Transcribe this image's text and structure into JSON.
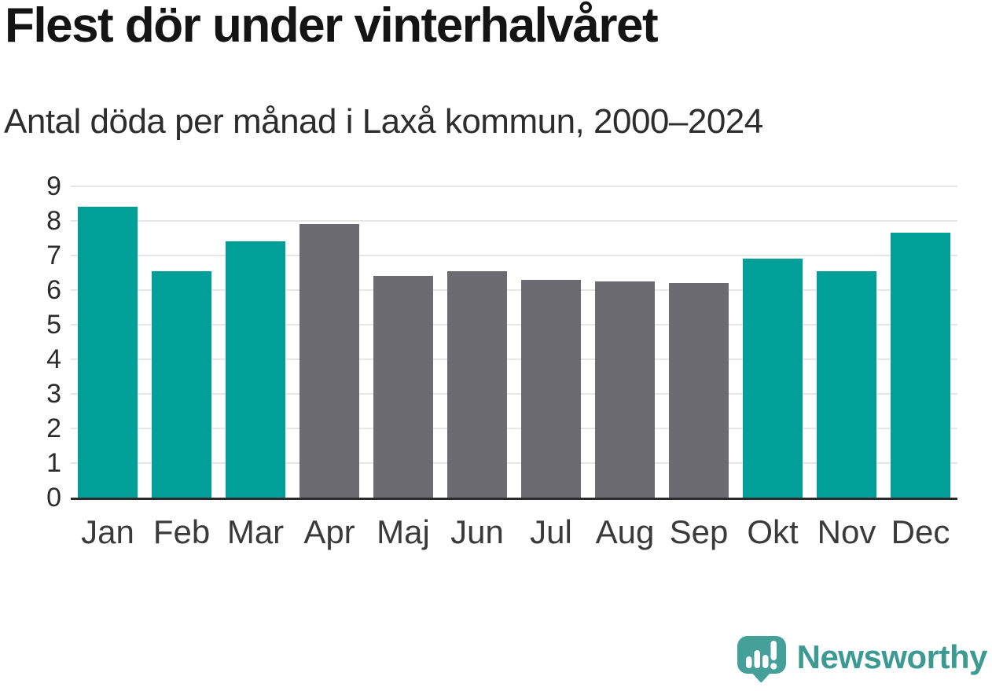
{
  "header": {
    "title": "Flest dör under vinterhalvåret",
    "subtitle": "Antal döda per månad i Laxå kommun, 2000–2024"
  },
  "chart_data": {
    "type": "bar",
    "title": "Flest dör under vinterhalvåret",
    "subtitle": "Antal döda per månad i Laxå kommun, 2000–2024",
    "categories": [
      "Jan",
      "Feb",
      "Mar",
      "Apr",
      "Maj",
      "Jun",
      "Jul",
      "Aug",
      "Sep",
      "Okt",
      "Nov",
      "Dec"
    ],
    "values": [
      8.4,
      6.55,
      7.4,
      7.9,
      6.4,
      6.55,
      6.3,
      6.25,
      6.2,
      6.9,
      6.55,
      7.65
    ],
    "groups": [
      "winter",
      "winter",
      "winter",
      "summer",
      "summer",
      "summer",
      "summer",
      "summer",
      "summer",
      "winter",
      "winter",
      "winter"
    ],
    "group_colors": {
      "winter": "#00a099",
      "summer": "#6c6b71"
    },
    "xlabel": "",
    "ylabel": "",
    "ylim": [
      0,
      9
    ],
    "yticks": [
      0,
      1,
      2,
      3,
      4,
      5,
      6,
      7,
      8,
      9
    ],
    "grid": true,
    "legend": false,
    "grid_color": "#e6e6e6",
    "axis_color": "#2b2b2b"
  },
  "footer": {
    "brand": "Newsworthy",
    "brand_color": "#3d9a93",
    "logo_icon": "newsworthy-speech-bubble-bar-chart-icon",
    "logo_color": "#44a099"
  }
}
